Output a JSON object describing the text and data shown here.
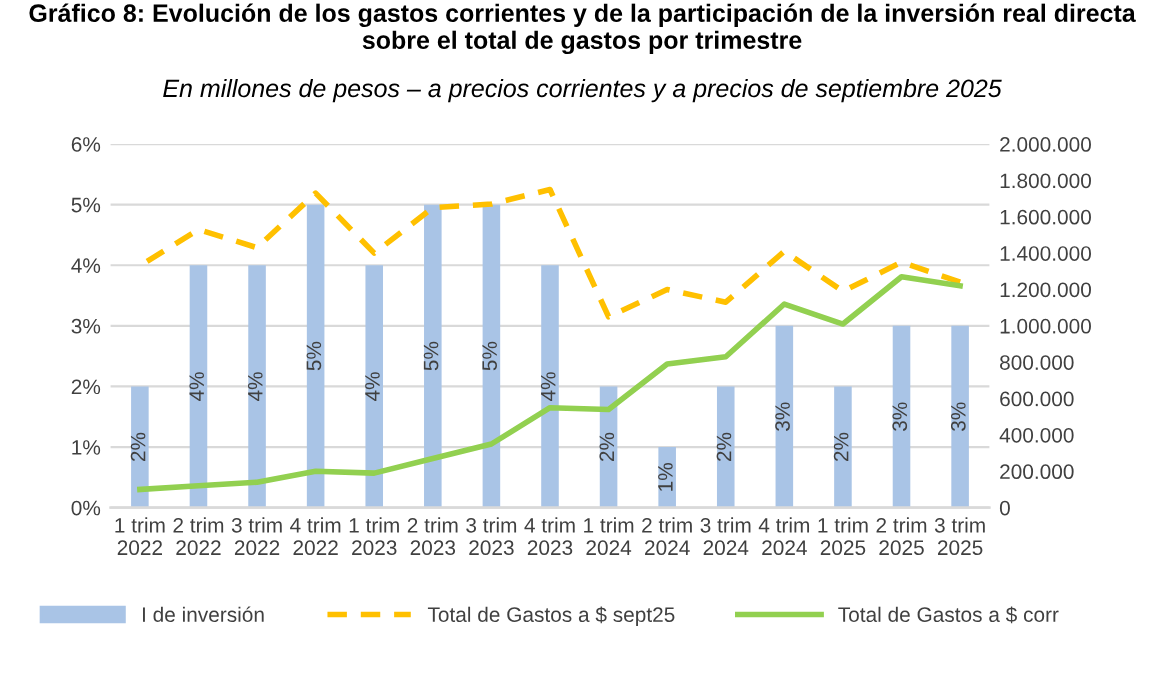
{
  "chart_data": {
    "type": "bar",
    "title": "Gráfico 8: Evolución de los gastos corrientes y de la participación de la inversión real directa\nsobre el total de gastos por trimestre",
    "subtitle": "En millones de pesos – a precios corrientes y a precios de septiembre 2025",
    "categories": [
      "1 trim\n2022",
      "2 trim\n2022",
      "3 trim\n2022",
      "4 trim\n2022",
      "1 trim\n2023",
      "2 trim\n2023",
      "3 trim\n2023",
      "4 trim\n2023",
      "1 trim\n2024",
      "2 trim\n2024",
      "3 trim\n2024",
      "4 trim\n2024",
      "1 trim\n2025",
      "2 trim\n2025",
      "3 trim\n2025"
    ],
    "series": [
      {
        "name": "I de inversión",
        "color": "#a9c4e6",
        "values": [
          2,
          4,
          4,
          5,
          4,
          5,
          5,
          4,
          2,
          1,
          2,
          3,
          2,
          3,
          3
        ],
        "value_labels": [
          "2%",
          "4%",
          "4%",
          "5%",
          "4%",
          "5%",
          "5%",
          "4%",
          "2%",
          "1%",
          "2%",
          "3%",
          "2%",
          "3%",
          "3%"
        ]
      },
      {
        "name": "Total de Gastos a $ sept25",
        "type": "line",
        "axis": "y2",
        "line_style": "dashed",
        "color": "#ffc000",
        "values": [
          1330000,
          1530000,
          1430000,
          1730000,
          1400000,
          1650000,
          1670000,
          1750000,
          1050000,
          1200000,
          1130000,
          1410000,
          1190000,
          1350000,
          1240000
        ]
      },
      {
        "name": "Total de Gastos a $ corr",
        "type": "line",
        "axis": "y2",
        "line_style": "solid",
        "color": "#92d050",
        "values": [
          100000,
          120000,
          140000,
          200000,
          190000,
          270000,
          350000,
          550000,
          540000,
          790000,
          830000,
          1120000,
          1010000,
          1270000,
          1220000
        ]
      }
    ],
    "ylim": [
      0,
      6
    ],
    "yticks": [
      {
        "value": 0,
        "label": "0%"
      },
      {
        "value": 1,
        "label": "1%"
      },
      {
        "value": 2,
        "label": "2%"
      },
      {
        "value": 3,
        "label": "3%"
      },
      {
        "value": 4,
        "label": "4%"
      },
      {
        "value": 5,
        "label": "5%"
      },
      {
        "value": 6,
        "label": "6%"
      }
    ],
    "y2lim": [
      0,
      2000000
    ],
    "y2ticks": [
      0,
      {
        "value": 200000,
        "label": "200.000"
      },
      {
        "value": 400000,
        "label": "400.000"
      },
      {
        "value": 600000,
        "label": "600.000"
      },
      {
        "value": 800000,
        "label": "800.000"
      },
      {
        "value": 1000000,
        "label": "1.000.000"
      },
      {
        "value": 1200000,
        "label": "1.200.000"
      },
      {
        "value": 1400000,
        "label": "1.400.000"
      },
      {
        "value": 1600000,
        "label": "1.600.000"
      },
      {
        "value": 1800000,
        "label": "1.800.000"
      },
      {
        "value": 2000000,
        "label": "2.000.000"
      }
    ],
    "grid": "y",
    "legend": "bottom"
  }
}
